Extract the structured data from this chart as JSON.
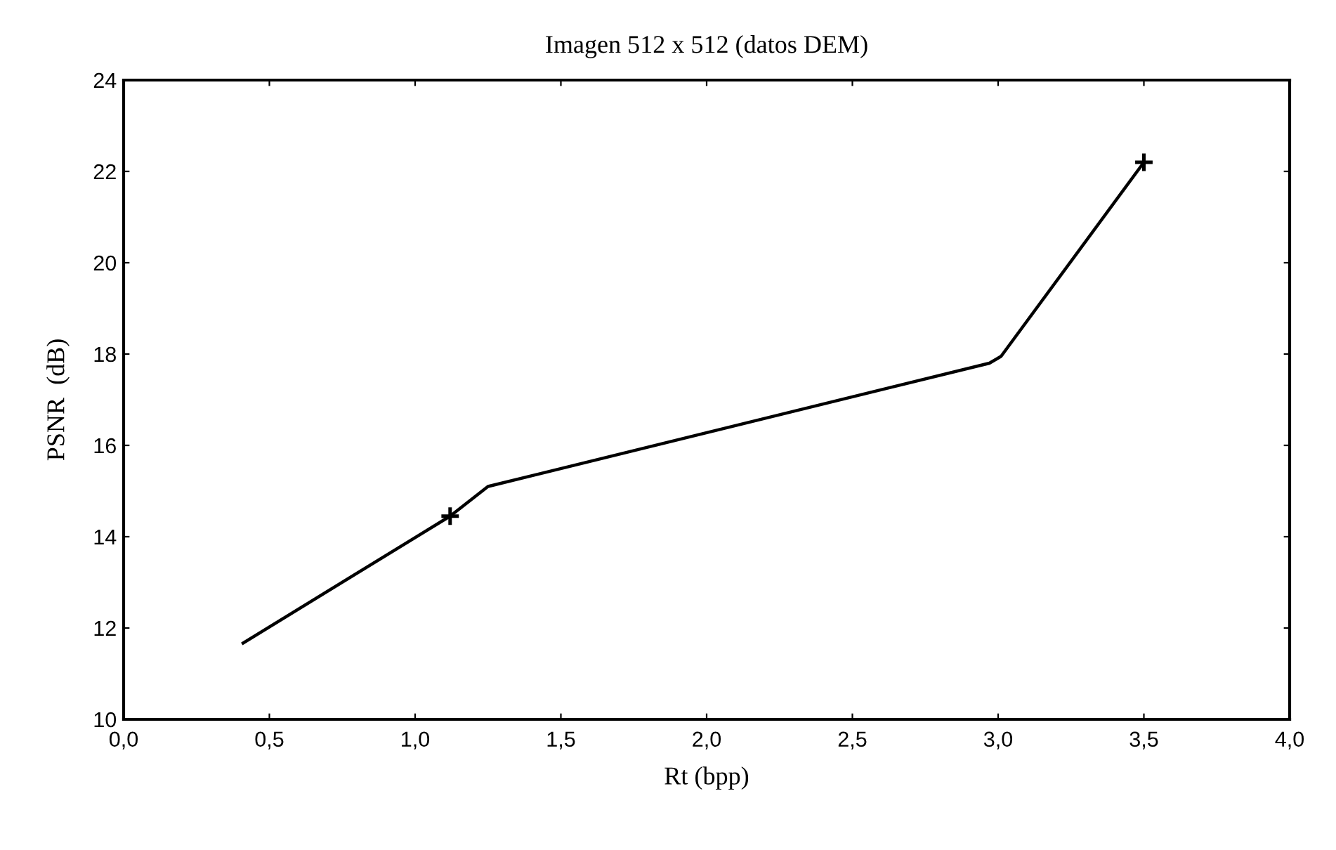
{
  "chart_data": {
    "type": "line",
    "title": "Imagen 512 x 512 (datos DEM)",
    "xlabel": "Rt (bpp)",
    "ylabel": "PSNR  (dB)",
    "series": [
      {
        "color": "#000000",
        "marker": "none",
        "x": [
          0.41,
          1.12,
          1.25,
          2.97,
          3.01,
          3.5
        ],
        "values": [
          11.67,
          14.45,
          15.1,
          17.8,
          17.95,
          22.2
        ]
      },
      {
        "type": "scatter",
        "color": "#000000",
        "marker": "cross",
        "x": [
          1.12,
          3.5
        ],
        "values": [
          14.45,
          22.2
        ]
      }
    ],
    "xlim": [
      0,
      4
    ],
    "ylim": [
      10,
      24
    ],
    "xticks": [
      {
        "value": 0,
        "label": "0,0"
      },
      {
        "value": 0.5,
        "label": "0,5"
      },
      {
        "value": 1,
        "label": "1,0"
      },
      {
        "value": 1.5,
        "label": "1,5"
      },
      {
        "value": 2,
        "label": "2,0"
      },
      {
        "value": 2.5,
        "label": "2,5"
      },
      {
        "value": 3,
        "label": "3,0"
      },
      {
        "value": 3.5,
        "label": "3,5"
      },
      {
        "value": 4,
        "label": "4,0"
      }
    ],
    "yticks": [
      10,
      12,
      14,
      16,
      18,
      20,
      22,
      24
    ],
    "grid": false
  }
}
